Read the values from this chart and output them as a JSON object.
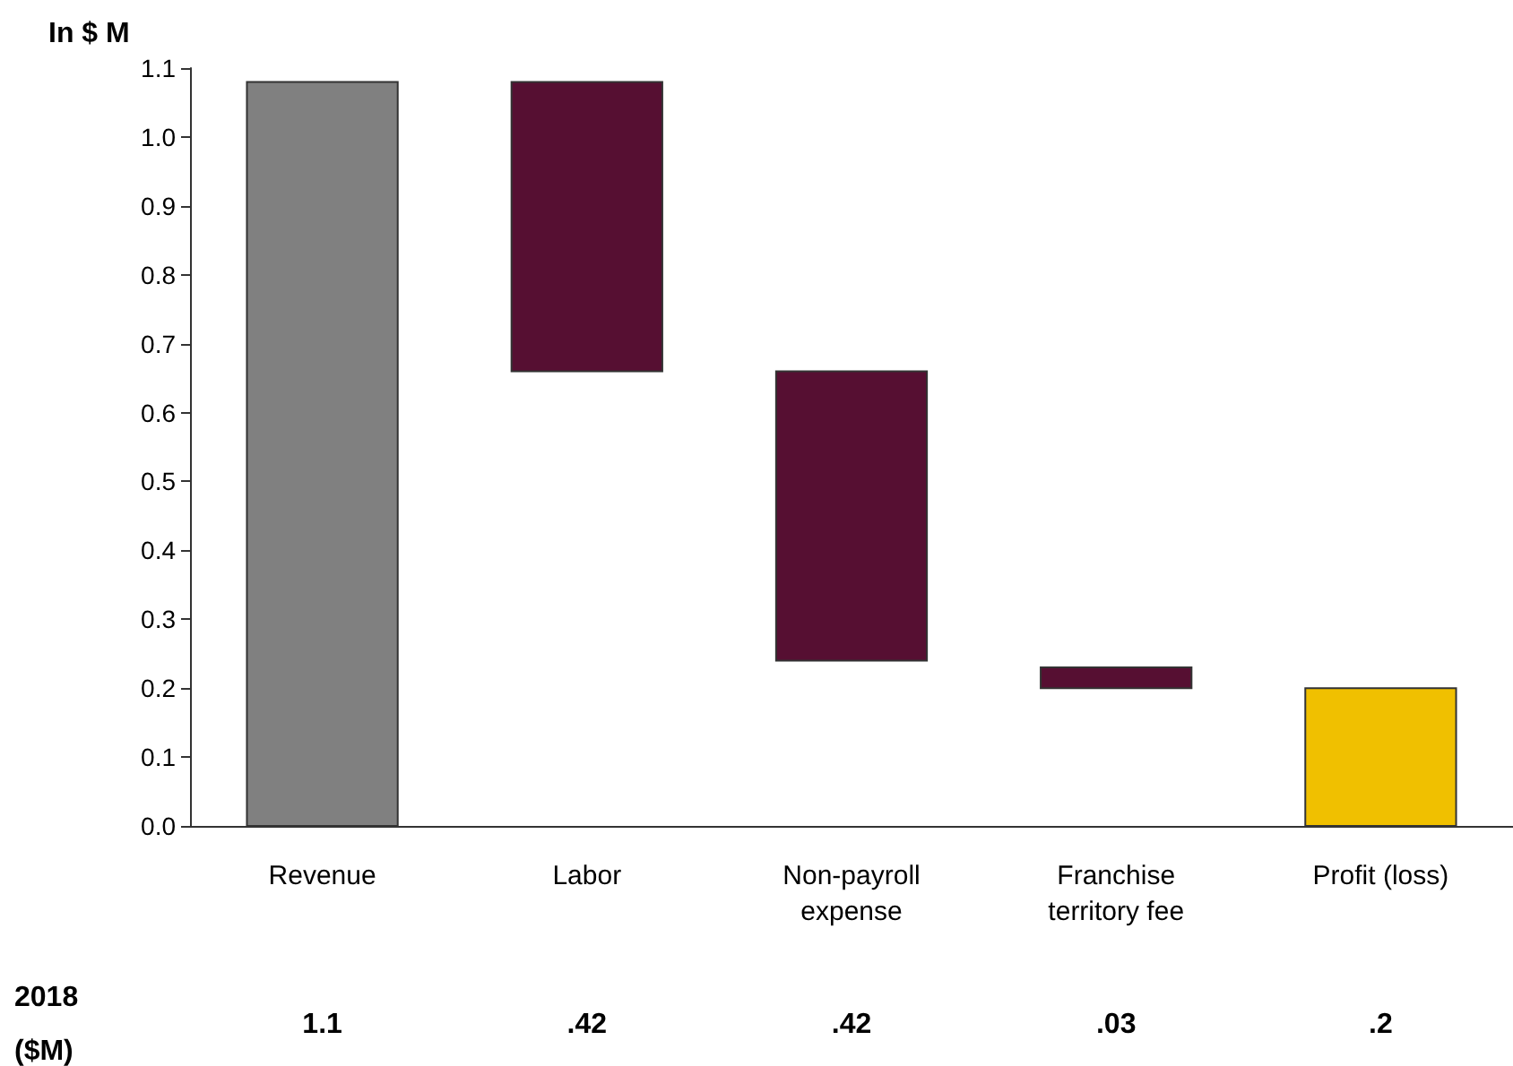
{
  "chart_data": {
    "type": "bar",
    "ylabel": "In $ M",
    "categories": [
      "Revenue",
      "Labor",
      "Non-payroll\nexpense",
      "Franchise\nterritory fee",
      "Profit (loss)"
    ],
    "values": [
      1.08,
      0.42,
      0.42,
      0.03,
      0.2
    ],
    "base": [
      0,
      0.66,
      0.24,
      0.2,
      0
    ],
    "colors": [
      "#808080",
      "#560f32",
      "#560f32",
      "#560f32",
      "#f0c000"
    ],
    "value_labels": [
      "1.1",
      ".42",
      ".42",
      ".03",
      ".2"
    ],
    "annotations": [
      "2018\n($M)"
    ],
    "ylim": [
      0,
      1.1
    ],
    "yticks": [
      {
        "value": 0,
        "label": "0.0"
      },
      0.1,
      0.2,
      0.3,
      0.4,
      0.5,
      0.6,
      0.7,
      0.8,
      0.9,
      {
        "value": 1,
        "label": "1.0"
      },
      1.1
    ],
    "grid": false
  }
}
